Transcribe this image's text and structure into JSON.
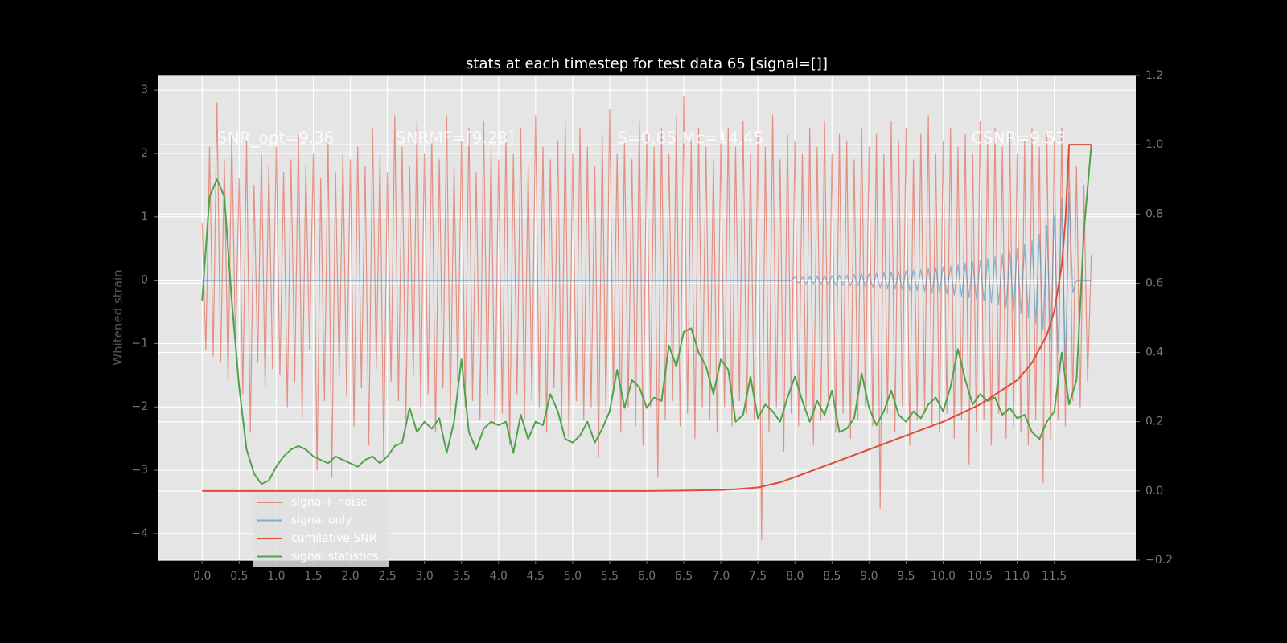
{
  "chart_data": {
    "type": "line",
    "title": "stats at each timestep for test data 65 [signal=[]]",
    "ylabel": "Whitened strain",
    "annotations": [
      "SNR_opt=9.36",
      "SNRMF=[9.28]",
      "S=0.85   Mc=14.45",
      "CSNR=9.53"
    ],
    "grid": true,
    "legend": "lower left",
    "xlim": [
      -0.6,
      12.6
    ],
    "ylim": [
      -4.42,
      3.23
    ],
    "y2lim": [
      -0.2,
      1.2
    ],
    "xticks": [
      {
        "value": 0,
        "label": "0.0"
      },
      0.5,
      {
        "value": 1,
        "label": "1.0"
      },
      1.5,
      {
        "value": 2,
        "label": "2.0"
      },
      2.5,
      {
        "value": 3,
        "label": "3.0"
      },
      3.5,
      {
        "value": 4,
        "label": "4.0"
      },
      4.5,
      {
        "value": 5,
        "label": "5.0"
      },
      5.5,
      {
        "value": 6,
        "label": "6.0"
      },
      6.5,
      {
        "value": 7,
        "label": "7.0"
      },
      7.5,
      {
        "value": 8,
        "label": "8.0"
      },
      8.5,
      {
        "value": 9,
        "label": "9.0"
      },
      9.5,
      {
        "value": 10,
        "label": "10.0"
      },
      10.5,
      {
        "value": 11,
        "label": "11.0"
      },
      11.5
    ],
    "yticks": [
      3,
      2,
      1,
      0,
      {
        "value": -1,
        "label": "−1"
      },
      {
        "value": -2,
        "label": "−2"
      },
      {
        "value": -3,
        "label": "−3"
      },
      {
        "value": -4,
        "label": "−4"
      }
    ],
    "y2ticks": [
      {
        "value": -0.2,
        "label": "−0.2"
      },
      {
        "value": 0,
        "label": "0.0"
      },
      0.2,
      0.4,
      0.6,
      0.8,
      {
        "value": 1,
        "label": "1.0"
      },
      1.2
    ],
    "x": [
      0,
      0.05,
      0.1,
      0.15,
      0.2,
      0.25,
      0.3,
      0.35,
      0.4,
      0.45,
      0.5,
      0.55,
      0.6,
      0.65,
      0.7,
      0.75,
      0.8,
      0.85,
      0.9,
      0.95,
      1,
      1.05,
      1.1,
      1.15,
      1.2,
      1.25,
      1.3,
      1.35,
      1.4,
      1.45,
      1.5,
      1.55,
      1.6,
      1.65,
      1.7,
      1.75,
      1.8,
      1.85,
      1.9,
      1.95,
      2,
      2.05,
      2.1,
      2.15,
      2.2,
      2.25,
      2.3,
      2.35,
      2.4,
      2.45,
      2.5,
      2.55,
      2.6,
      2.65,
      2.7,
      2.75,
      2.8,
      2.85,
      2.9,
      2.95,
      3,
      3.05,
      3.1,
      3.15,
      3.2,
      3.25,
      3.3,
      3.35,
      3.4,
      3.45,
      3.5,
      3.55,
      3.6,
      3.65,
      3.7,
      3.75,
      3.8,
      3.85,
      3.9,
      3.95,
      4,
      4.05,
      4.1,
      4.15,
      4.2,
      4.25,
      4.3,
      4.35,
      4.4,
      4.45,
      4.5,
      4.55,
      4.6,
      4.65,
      4.7,
      4.75,
      4.8,
      4.85,
      4.9,
      4.95,
      5,
      5.05,
      5.1,
      5.15,
      5.2,
      5.25,
      5.3,
      5.35,
      5.4,
      5.45,
      5.5,
      5.55,
      5.6,
      5.65,
      5.7,
      5.75,
      5.8,
      5.85,
      5.9,
      5.95,
      6,
      6.05,
      6.1,
      6.15,
      6.2,
      6.25,
      6.3,
      6.35,
      6.4,
      6.45,
      6.5,
      6.55,
      6.6,
      6.65,
      6.7,
      6.75,
      6.8,
      6.85,
      6.9,
      6.95,
      7,
      7.05,
      7.1,
      7.15,
      7.2,
      7.25,
      7.3,
      7.35,
      7.4,
      7.45,
      7.5,
      7.55,
      7.6,
      7.65,
      7.7,
      7.75,
      7.8,
      7.85,
      7.9,
      7.95,
      8,
      8.05,
      8.1,
      8.15,
      8.2,
      8.25,
      8.3,
      8.35,
      8.4,
      8.45,
      8.5,
      8.55,
      8.6,
      8.65,
      8.7,
      8.75,
      8.8,
      8.85,
      8.9,
      8.95,
      9,
      9.05,
      9.1,
      9.15,
      9.2,
      9.25,
      9.3,
      9.35,
      9.4,
      9.45,
      9.5,
      9.55,
      9.6,
      9.65,
      9.7,
      9.75,
      9.8,
      9.85,
      9.9,
      9.95,
      10,
      10.05,
      10.1,
      10.15,
      10.2,
      10.25,
      10.3,
      10.35,
      10.4,
      10.45,
      10.5,
      10.55,
      10.6,
      10.65,
      10.7,
      10.75,
      10.8,
      10.85,
      10.9,
      10.95,
      11,
      11.05,
      11.1,
      11.15,
      11.2,
      11.25,
      11.3,
      11.35,
      11.4,
      11.45,
      11.5,
      11.55,
      11.6,
      11.65,
      11.7,
      11.75,
      11.8,
      11.85,
      11.9,
      11.95,
      12
    ],
    "series": [
      {
        "name": "signal+ noise",
        "color": "#e24a33",
        "values": [
          0.9,
          -1.1,
          2.1,
          -1.2,
          2.8,
          -1.3,
          1.9,
          -1.6,
          2.3,
          -1.0,
          1.6,
          -1.8,
          2.2,
          -2.4,
          1.5,
          -1.3,
          2.0,
          -1.7,
          1.8,
          -1.4,
          2.1,
          -1.5,
          1.7,
          -2.0,
          1.9,
          -1.6,
          2.3,
          -2.2,
          1.8,
          -1.1,
          2.0,
          -3.0,
          1.6,
          -1.9,
          2.2,
          -3.1,
          1.7,
          -1.5,
          2.0,
          -1.8,
          1.9,
          -2.3,
          2.1,
          -1.7,
          1.8,
          -2.6,
          2.4,
          -1.4,
          2.0,
          -2.8,
          1.7,
          -1.6,
          2.6,
          -1.9,
          2.1,
          -2.2,
          1.8,
          -1.5,
          2.5,
          -2.0,
          2.0,
          -1.8,
          2.3,
          -2.4,
          1.9,
          -1.7,
          2.6,
          -2.1,
          1.8,
          -1.6,
          2.2,
          -2.0,
          2.4,
          -1.9,
          1.7,
          -2.2,
          2.5,
          -1.8,
          2.1,
          -2.3,
          1.9,
          -2.1,
          2.3,
          -2.6,
          2.0,
          -1.8,
          2.4,
          -2.2,
          1.8,
          -1.9,
          2.6,
          -2.0,
          2.1,
          -2.4,
          1.9,
          -1.7,
          2.2,
          -2.3,
          2.5,
          -2.5,
          2.0,
          -1.9,
          2.4,
          -2.2,
          2.1,
          -2.0,
          1.8,
          -2.8,
          2.3,
          -2.1,
          2.7,
          -1.8,
          2.0,
          -2.4,
          2.2,
          -2.0,
          1.9,
          -2.3,
          2.5,
          -2.6,
          2.3,
          -2.0,
          2.1,
          -3.1,
          2.4,
          -2.2,
          2.0,
          -1.9,
          2.6,
          -2.3,
          2.9,
          -2.1,
          2.2,
          -2.5,
          2.4,
          -2.0,
          2.1,
          -2.2,
          1.9,
          -2.4,
          2.2,
          -2.0,
          2.4,
          -2.3,
          2.1,
          -1.9,
          2.5,
          -2.1,
          2.0,
          -2.2,
          2.3,
          -4.1,
          2.1,
          -2.4,
          2.6,
          -2.0,
          1.9,
          -2.7,
          2.3,
          -2.1,
          2.2,
          -2.3,
          2.0,
          -2.0,
          2.4,
          -2.6,
          2.1,
          -2.2,
          2.5,
          -1.9,
          2.0,
          -2.4,
          2.3,
          -2.1,
          2.2,
          -2.5,
          1.9,
          -2.2,
          2.4,
          -2.0,
          2.1,
          -2.3,
          2.3,
          -3.6,
          2.0,
          -2.1,
          2.5,
          -2.4,
          2.2,
          -2.0,
          2.4,
          -2.6,
          1.9,
          -2.2,
          2.3,
          -2.1,
          2.6,
          -2.3,
          2.0,
          -2.4,
          2.2,
          -2.1,
          2.4,
          -2.5,
          2.1,
          -2.2,
          2.3,
          -2.9,
          2.0,
          -2.4,
          2.5,
          -2.2,
          2.2,
          -2.6,
          2.4,
          -2.1,
          2.1,
          -2.5,
          2.3,
          -2.3,
          2.0,
          -2.4,
          2.2,
          -2.6,
          2.4,
          -2.2,
          2.1,
          -3.2,
          2.3,
          -2.5,
          2.2,
          -2.2,
          2.4,
          -2.3,
          2.0,
          -1.9,
          1.8,
          -2.0,
          1.5,
          -1.6,
          0.4
        ]
      },
      {
        "name": "signal only",
        "color": "#348abd",
        "values": [
          0,
          0,
          0,
          0,
          0,
          0,
          0,
          0,
          0,
          0,
          0,
          0,
          0,
          0,
          0,
          0,
          0,
          0,
          0,
          0,
          0,
          0,
          0,
          0,
          0,
          0,
          0,
          0,
          0,
          0,
          0,
          0,
          0,
          0,
          0,
          0,
          0,
          0,
          0,
          0,
          0,
          0,
          0,
          0,
          0,
          0,
          0,
          0,
          0,
          0,
          0,
          0,
          0,
          0,
          0,
          0,
          0,
          0,
          0,
          0,
          0,
          0,
          0,
          0,
          0,
          0,
          0,
          0,
          0,
          0,
          0,
          0,
          0,
          0,
          0,
          0,
          0,
          0,
          0,
          0,
          0,
          0,
          0,
          0,
          0,
          0,
          0,
          0,
          0,
          0,
          0,
          0,
          0,
          0,
          0,
          0,
          0,
          0,
          0,
          0,
          0,
          0,
          0,
          0,
          0,
          0,
          0,
          0,
          0,
          0,
          0,
          0,
          0,
          0,
          0,
          0,
          0,
          0,
          0,
          0,
          0,
          0,
          0,
          0,
          0,
          0,
          0,
          0,
          0,
          0,
          0,
          0,
          0,
          0,
          0,
          0,
          0,
          0,
          0,
          0,
          0,
          0,
          0,
          0,
          0,
          0,
          0,
          0,
          0,
          0,
          0,
          0,
          0,
          0,
          0,
          0,
          0,
          0,
          0,
          0,
          0.05,
          -0.05,
          0.05,
          -0.06,
          0.06,
          -0.06,
          0.06,
          -0.07,
          0.07,
          -0.07,
          0.07,
          -0.08,
          0.08,
          -0.08,
          0.08,
          -0.09,
          0.09,
          -0.09,
          0.1,
          -0.1,
          0.1,
          -0.11,
          0.11,
          -0.12,
          0.12,
          -0.13,
          0.13,
          -0.14,
          0.14,
          -0.15,
          0.15,
          -0.16,
          0.16,
          -0.17,
          0.17,
          -0.18,
          0.18,
          -0.19,
          0.2,
          -0.2,
          0.21,
          -0.22,
          0.23,
          -0.24,
          0.25,
          -0.26,
          0.27,
          -0.28,
          0.29,
          -0.3,
          0.31,
          -0.33,
          0.34,
          -0.36,
          0.37,
          -0.39,
          0.41,
          -0.43,
          0.45,
          -0.48,
          0.5,
          -0.53,
          0.56,
          -0.6,
          0.64,
          -0.68,
          0.73,
          -0.79,
          0.86,
          -0.94,
          1.03,
          -1.15,
          1.3,
          -1.4,
          1.38,
          -0.2,
          0,
          0,
          0,
          0,
          0
        ]
      },
      {
        "name": "cumilative SNR",
        "color": "#e24a33",
        "axis": "y2",
        "x": [
          0,
          1,
          2,
          3,
          4,
          5,
          6,
          6.5,
          7,
          7.2,
          7.5,
          7.8,
          8,
          8.5,
          9,
          9.5,
          10,
          10.5,
          11,
          11.2,
          11.4,
          11.5,
          11.6,
          11.65,
          11.7,
          12
        ],
        "values": [
          0,
          0,
          0,
          0,
          0,
          0,
          0,
          0.001,
          0.003,
          0.005,
          0.01,
          0.025,
          0.04,
          0.08,
          0.12,
          0.16,
          0.2,
          0.25,
          0.32,
          0.37,
          0.45,
          0.52,
          0.65,
          0.78,
          1.0,
          1.0
        ]
      },
      {
        "name": "signal statistics",
        "color": "#4fa24a",
        "axis": "y2",
        "x": [
          0,
          0.1,
          0.2,
          0.3,
          0.4,
          0.5,
          0.6,
          0.7,
          0.8,
          0.9,
          1,
          1.1,
          1.2,
          1.3,
          1.4,
          1.5,
          1.6,
          1.7,
          1.8,
          1.9,
          2,
          2.1,
          2.2,
          2.3,
          2.4,
          2.5,
          2.6,
          2.7,
          2.8,
          2.9,
          3,
          3.1,
          3.2,
          3.3,
          3.4,
          3.5,
          3.6,
          3.7,
          3.8,
          3.9,
          4,
          4.1,
          4.2,
          4.3,
          4.4,
          4.5,
          4.6,
          4.7,
          4.8,
          4.9,
          5,
          5.1,
          5.2,
          5.3,
          5.4,
          5.5,
          5.6,
          5.7,
          5.8,
          5.9,
          6,
          6.1,
          6.2,
          6.3,
          6.4,
          6.5,
          6.6,
          6.7,
          6.8,
          6.9,
          7,
          7.1,
          7.2,
          7.3,
          7.4,
          7.5,
          7.6,
          7.7,
          7.8,
          7.9,
          8,
          8.1,
          8.2,
          8.3,
          8.4,
          8.5,
          8.6,
          8.7,
          8.8,
          8.9,
          9,
          9.1,
          9.2,
          9.3,
          9.4,
          9.5,
          9.6,
          9.7,
          9.8,
          9.9,
          10,
          10.1,
          10.2,
          10.3,
          10.4,
          10.5,
          10.6,
          10.7,
          10.8,
          10.9,
          11,
          11.1,
          11.2,
          11.3,
          11.4,
          11.5,
          11.6,
          11.7,
          11.8,
          11.9,
          12
        ],
        "values": [
          0.55,
          0.85,
          0.9,
          0.85,
          0.55,
          0.3,
          0.12,
          0.05,
          0.02,
          0.03,
          0.07,
          0.1,
          0.12,
          0.13,
          0.12,
          0.1,
          0.09,
          0.08,
          0.1,
          0.09,
          0.08,
          0.07,
          0.09,
          0.1,
          0.08,
          0.1,
          0.13,
          0.14,
          0.24,
          0.17,
          0.2,
          0.18,
          0.21,
          0.11,
          0.2,
          0.38,
          0.17,
          0.12,
          0.18,
          0.2,
          0.19,
          0.2,
          0.11,
          0.22,
          0.15,
          0.2,
          0.19,
          0.28,
          0.23,
          0.15,
          0.14,
          0.16,
          0.2,
          0.14,
          0.18,
          0.23,
          0.35,
          0.24,
          0.32,
          0.3,
          0.24,
          0.27,
          0.26,
          0.42,
          0.36,
          0.46,
          0.47,
          0.4,
          0.36,
          0.28,
          0.38,
          0.35,
          0.2,
          0.22,
          0.33,
          0.21,
          0.25,
          0.23,
          0.2,
          0.27,
          0.33,
          0.26,
          0.2,
          0.26,
          0.22,
          0.29,
          0.17,
          0.18,
          0.21,
          0.34,
          0.24,
          0.19,
          0.23,
          0.29,
          0.22,
          0.2,
          0.23,
          0.21,
          0.25,
          0.27,
          0.23,
          0.3,
          0.41,
          0.32,
          0.25,
          0.28,
          0.26,
          0.27,
          0.22,
          0.24,
          0.21,
          0.22,
          0.17,
          0.15,
          0.2,
          0.23,
          0.4,
          0.25,
          0.32,
          0.75,
          1.0
        ]
      }
    ]
  }
}
